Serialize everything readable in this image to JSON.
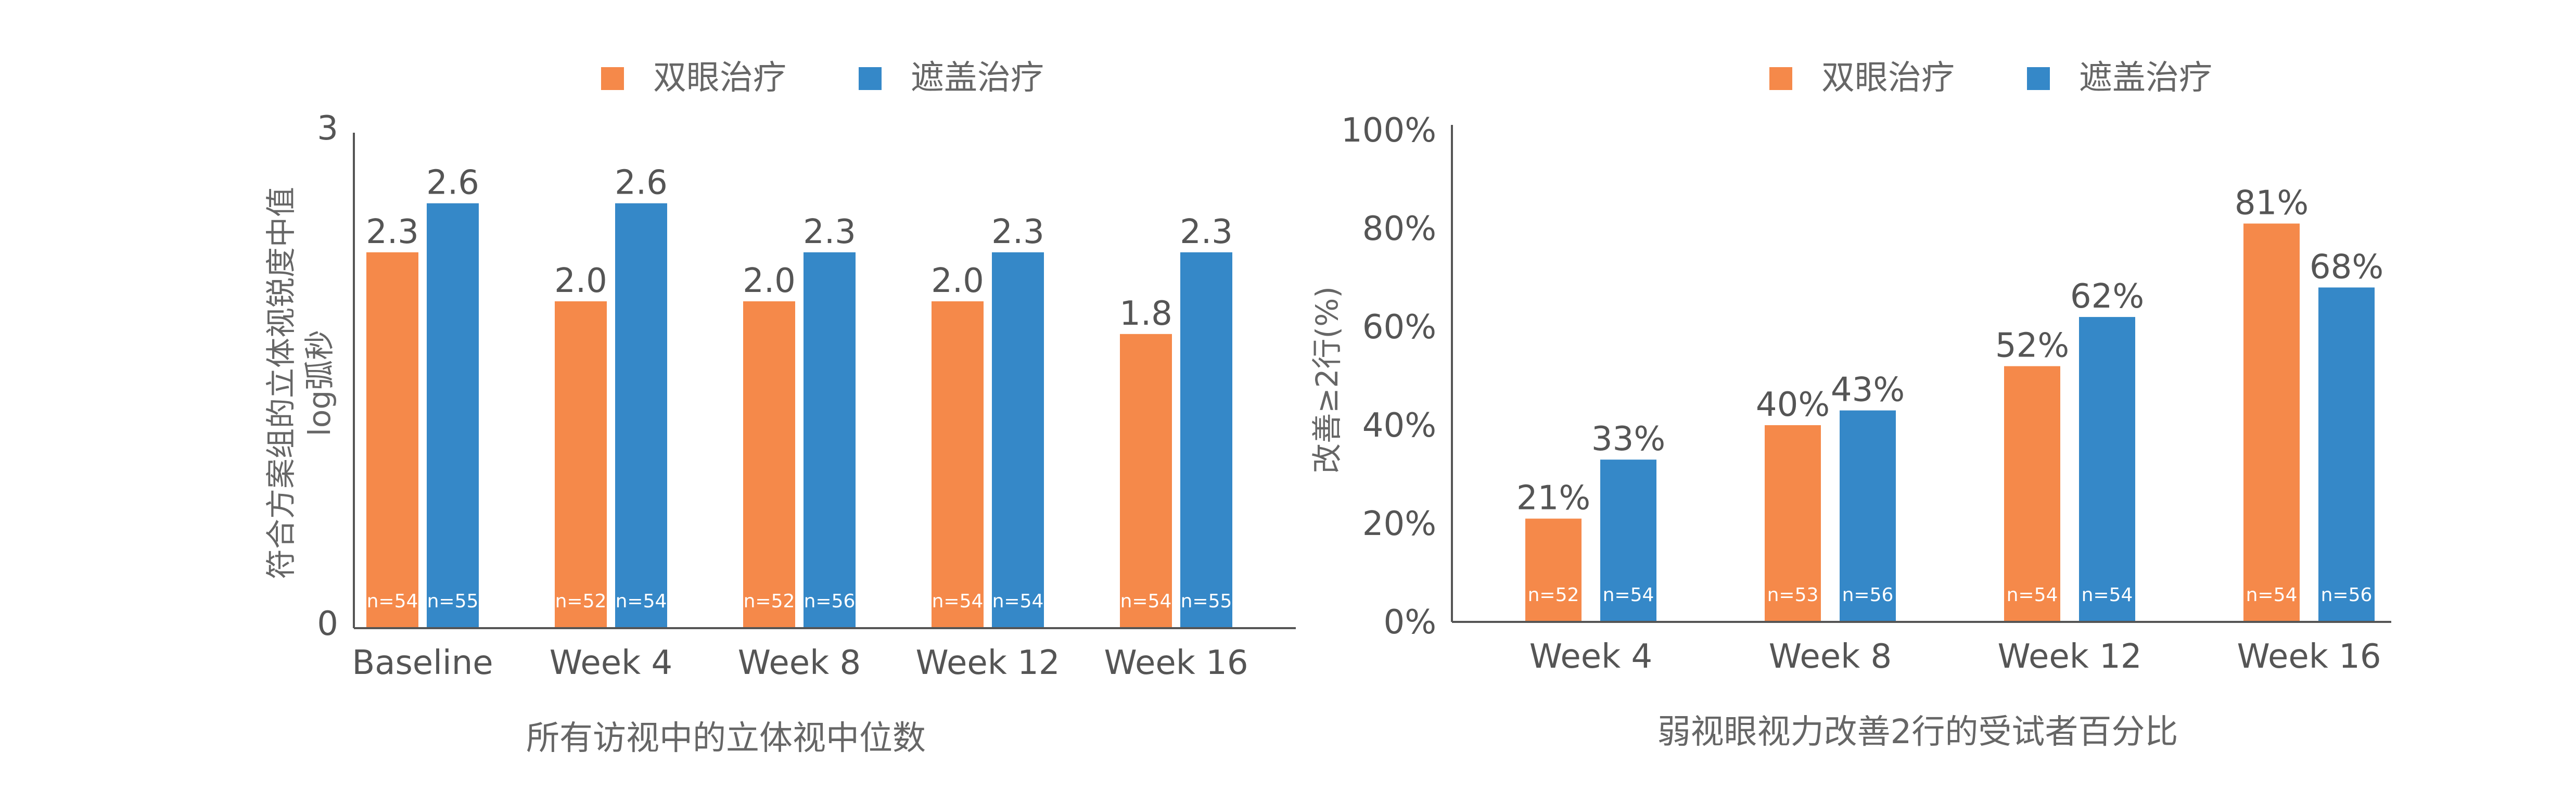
{
  "colors": {
    "orange": "#F5894A",
    "blue": "#3588C8"
  },
  "chart_data": [
    {
      "type": "bar",
      "legend": [
        "双眼治疗",
        "遮盖治疗"
      ],
      "legend_position": "top",
      "categories": [
        "Baseline",
        "Week 4",
        "Week 8",
        "Week 12",
        "Week 16"
      ],
      "series": [
        {
          "name": "双眼治疗",
          "values": [
            2.3,
            2.0,
            2.0,
            2.0,
            1.8
          ],
          "labels": [
            "2.3",
            "2.0",
            "2.0",
            "2.0",
            "1.8"
          ],
          "n": [
            "n=54",
            "n=52",
            "n=52",
            "n=54",
            "n=54"
          ]
        },
        {
          "name": "遮盖治疗",
          "values": [
            2.6,
            2.6,
            2.3,
            2.3,
            2.3
          ],
          "labels": [
            "2.6",
            "2.6",
            "2.3",
            "2.3",
            "2.3"
          ],
          "n": [
            "n=55",
            "n=54",
            "n=56",
            "n=54",
            "n=55"
          ]
        }
      ],
      "ylabel": "符合方案组的立体视锐度中值\nlog弧秒",
      "xlabel": "所有访视中的立体视中位数",
      "ylim": [
        0,
        3
      ],
      "yticks": [
        "0",
        "3"
      ],
      "grid": false
    },
    {
      "type": "bar",
      "legend": [
        "双眼治疗",
        "遮盖治疗"
      ],
      "legend_position": "top",
      "categories": [
        "Week 4",
        "Week 8",
        "Week 12",
        "Week 16"
      ],
      "series": [
        {
          "name": "双眼治疗",
          "values": [
            21,
            40,
            52,
            81
          ],
          "labels": [
            "21%",
            "40%",
            "52%",
            "81%"
          ],
          "n": [
            "n=52",
            "n=53",
            "n=54",
            "n=54"
          ]
        },
        {
          "name": "遮盖治疗",
          "values": [
            33,
            43,
            62,
            68
          ],
          "labels": [
            "33%",
            "43%",
            "62%",
            "68%"
          ],
          "n": [
            "n=54",
            "n=56",
            "n=54",
            "n=56"
          ]
        }
      ],
      "ylabel": "改善≥2行(%)",
      "xlabel": "弱视眼视力改善2行的受试者百分比",
      "ylim": [
        0,
        100
      ],
      "yticks": [
        "0%",
        "20%",
        "40%",
        "60%",
        "80%",
        "100%"
      ],
      "grid": false
    }
  ]
}
